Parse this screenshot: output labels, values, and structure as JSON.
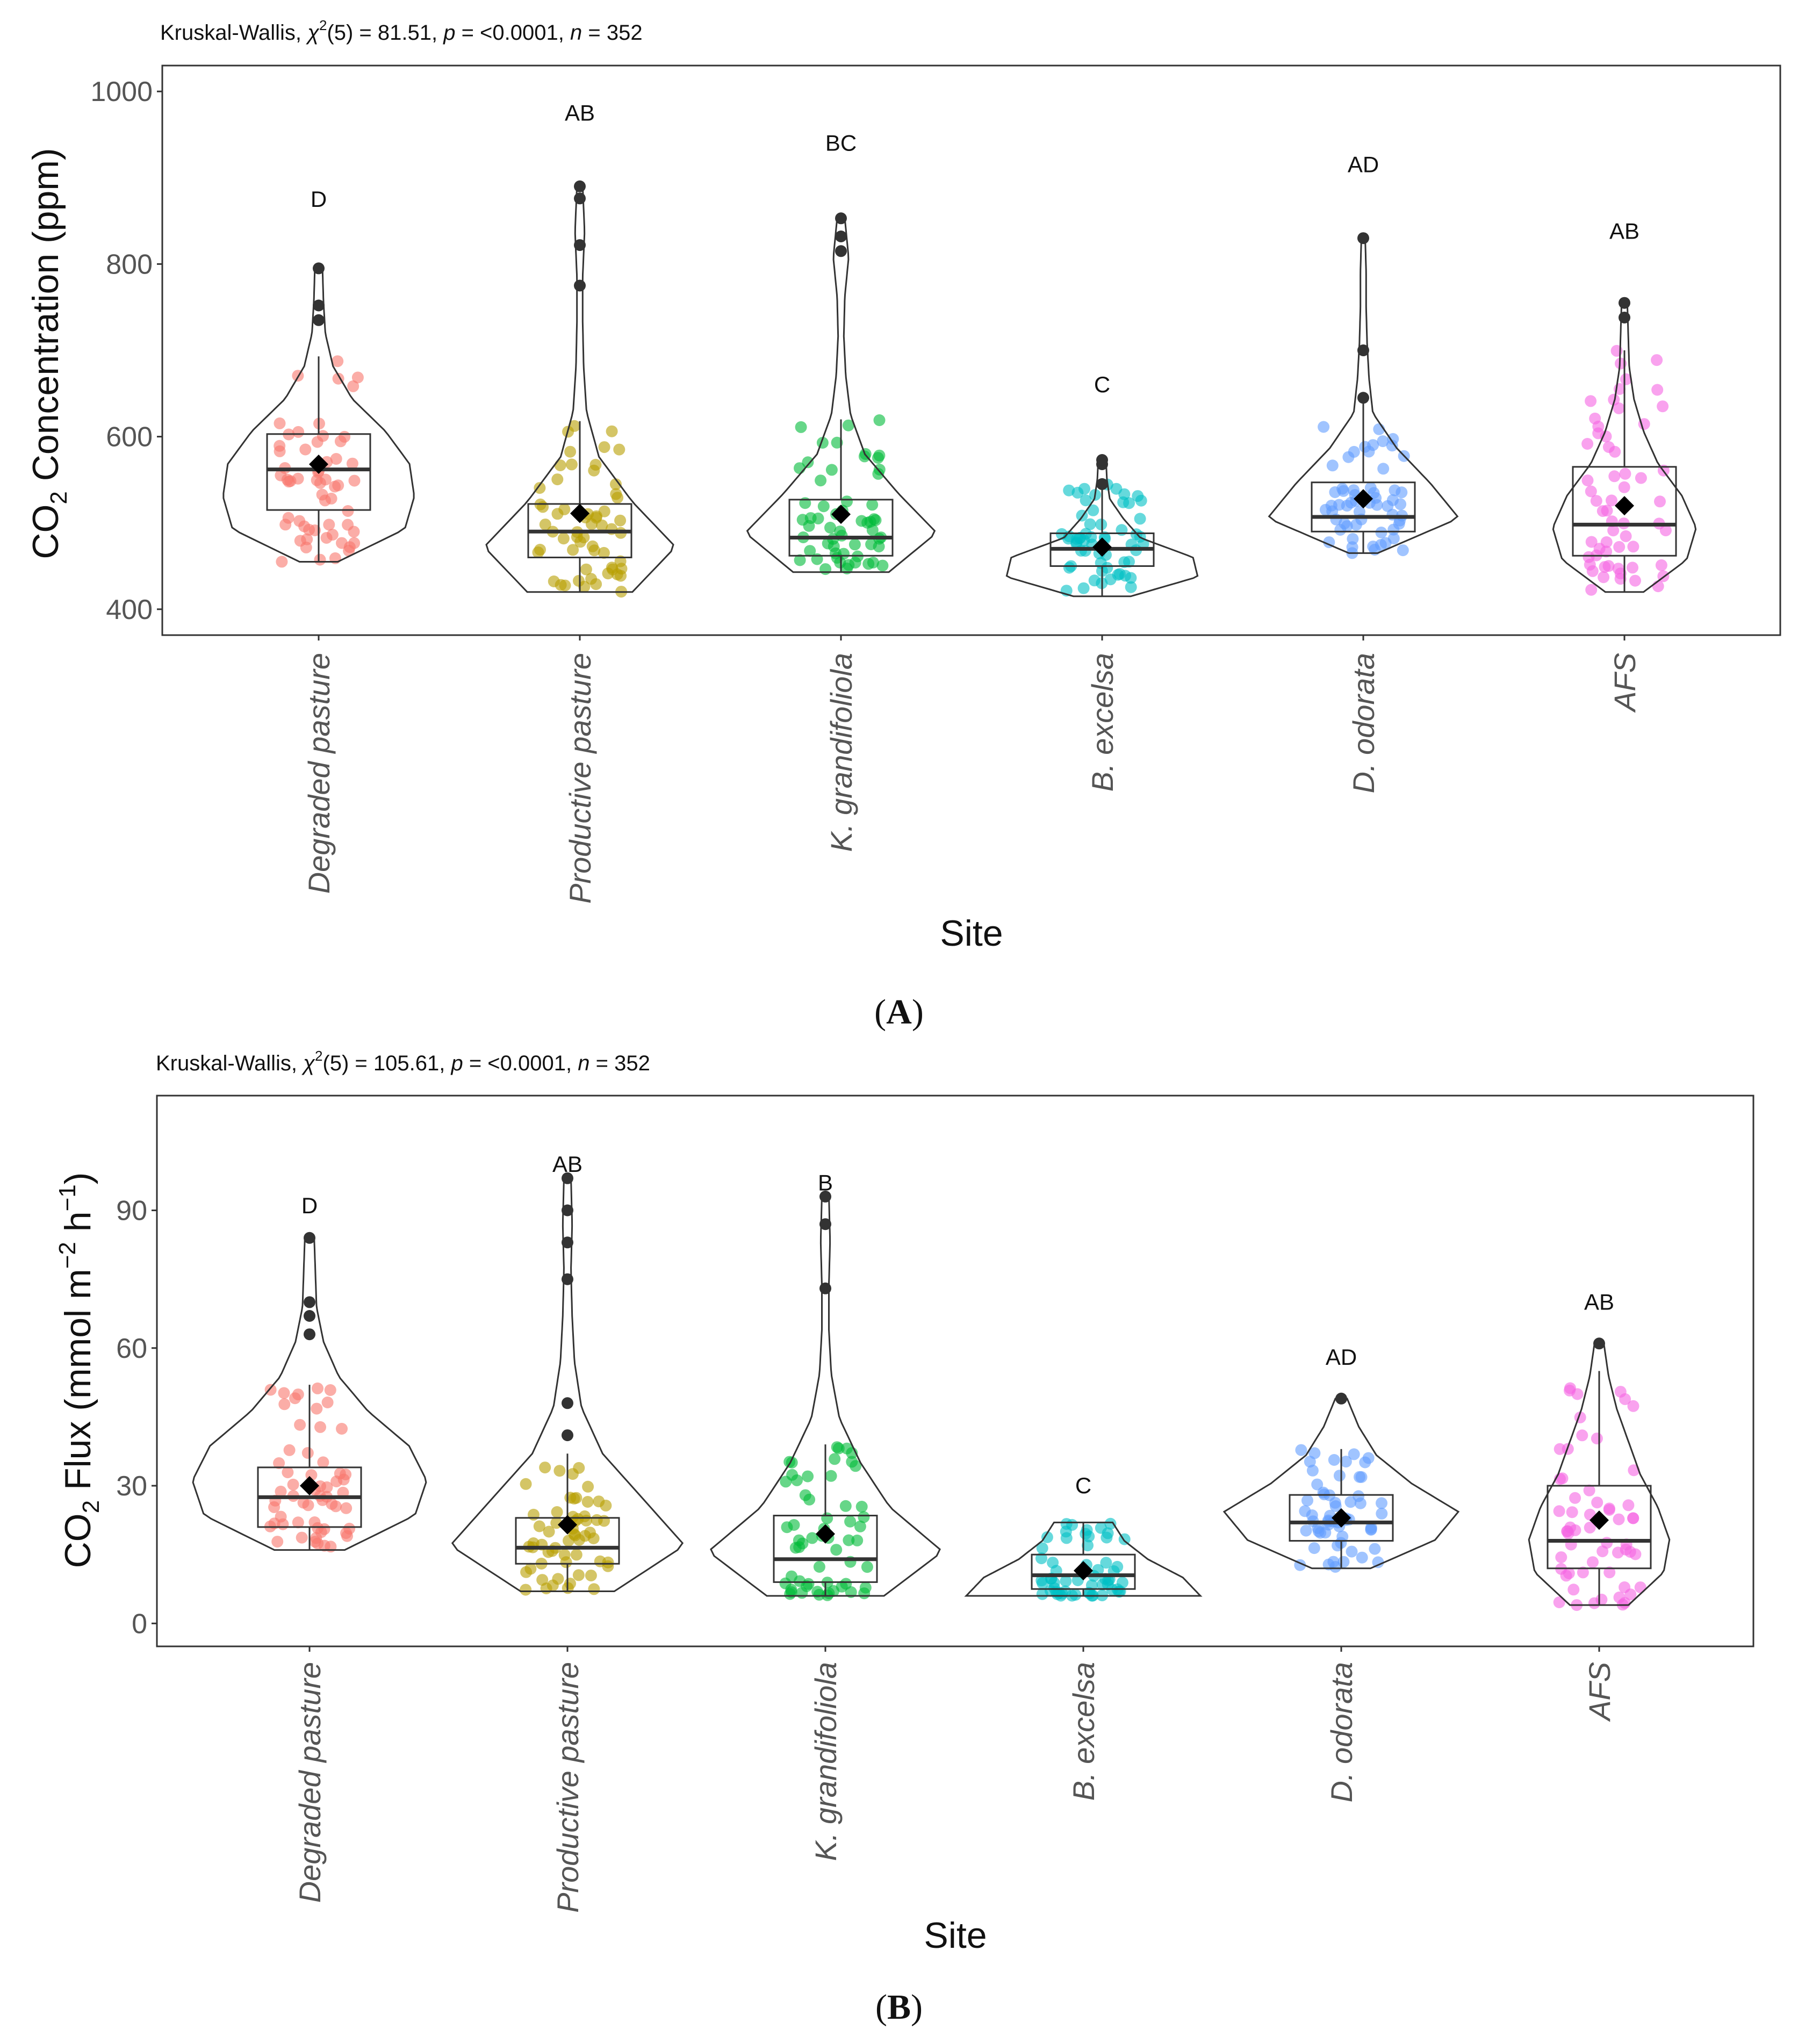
{
  "chart_data": [
    {
      "panel_label": "A",
      "type": "box-violin-strip",
      "title": "",
      "stat": {
        "prefix": "Kruskal-Wallis, ",
        "chi": "χ",
        "sup": "2",
        "df_part": "(5) = 81.51, ",
        "p_sym": "p",
        "p_part": " = <0.0001, ",
        "n_sym": "n",
        "n_part": " = 352"
      },
      "xlabel": "Site",
      "ylabel_main": "CO",
      "ylabel_sub": "2",
      "ylabel_rest": " Concentration (ppm)",
      "ylim": [
        370,
        1030
      ],
      "yticks": [
        400,
        600,
        800,
        1000
      ],
      "categories": [
        "Degraded pasture",
        "Productive pasture",
        "K. grandifoliola",
        "B. excelsa",
        "D. odorata",
        "AFS"
      ],
      "colors": [
        "#F8766D",
        "#B79F00",
        "#00BA38",
        "#00BFC4",
        "#619CFF",
        "#F564E3"
      ],
      "letters": [
        "D",
        "AB",
        "BC",
        "C",
        "AD",
        "AB"
      ],
      "letter_y": [
        875,
        975,
        940,
        660,
        915,
        838
      ],
      "boxes": [
        {
          "q1": 515,
          "median": 562,
          "q3": 603,
          "wlo": 455,
          "whi": 693,
          "mean": 568,
          "min": 455,
          "max": 795,
          "outliers": [
            735,
            752,
            795
          ]
        },
        {
          "q1": 460,
          "median": 490,
          "q3": 522,
          "wlo": 420,
          "whi": 618,
          "mean": 511,
          "min": 420,
          "max": 890,
          "outliers": [
            775,
            822,
            876,
            890
          ]
        },
        {
          "q1": 462,
          "median": 483,
          "q3": 527,
          "wlo": 443,
          "whi": 620,
          "mean": 510,
          "min": 443,
          "max": 853,
          "outliers": [
            815,
            832,
            853
          ]
        },
        {
          "q1": 450,
          "median": 470,
          "q3": 488,
          "wlo": 415,
          "whi": 545,
          "mean": 472,
          "min": 415,
          "max": 573,
          "outliers": [
            545,
            568,
            573
          ]
        },
        {
          "q1": 490,
          "median": 507,
          "q3": 547,
          "wlo": 465,
          "whi": 640,
          "mean": 528,
          "min": 465,
          "max": 830,
          "outliers": [
            645,
            700,
            830
          ]
        },
        {
          "q1": 462,
          "median": 498,
          "q3": 565,
          "wlo": 420,
          "whi": 700,
          "mean": 520,
          "min": 420,
          "max": 755,
          "outliers": [
            738,
            755
          ]
        }
      ],
      "violin_shapes": [
        [
          0.2,
          0.9,
          1.0,
          0.95,
          0.7,
          0.35,
          0.15,
          0.07,
          0.05,
          0.04
        ],
        [
          0.55,
          1.0,
          0.55,
          0.2,
          0.07,
          0.04,
          0.03,
          0.03,
          0.05,
          0.03
        ],
        [
          0.5,
          1.0,
          0.6,
          0.25,
          0.1,
          0.05,
          0.03,
          0.04,
          0.08,
          0.04
        ],
        [
          0.3,
          1.0,
          0.95,
          0.4,
          0.22,
          0.08,
          0.05,
          0.04
        ],
        [
          0.15,
          1.0,
          0.7,
          0.35,
          0.1,
          0.06,
          0.04,
          0.03,
          0.03,
          0.02
        ],
        [
          0.2,
          0.65,
          0.75,
          0.6,
          0.35,
          0.2,
          0.1,
          0.05,
          0.04,
          0.03
        ]
      ]
    },
    {
      "panel_label": "B",
      "type": "box-violin-strip",
      "title": "",
      "stat": {
        "prefix": "Kruskal-Wallis, ",
        "chi": "χ",
        "sup": "2",
        "df_part": "(5) = 105.61, ",
        "p_sym": "p",
        "p_part": " = <0.0001, ",
        "n_sym": "n",
        "n_part": " = 352"
      },
      "xlabel": "Site",
      "ylabel_main": "CO",
      "ylabel_sub": "2",
      "ylabel_rest": " Flux (mmol m",
      "ylabel_sup1": "−2",
      "ylabel_mid": " h",
      "ylabel_sup2": "−1",
      "ylabel_end": ")",
      "ylim": [
        -5,
        115
      ],
      "yticks": [
        0,
        30,
        60,
        90
      ],
      "categories": [
        "Degraded pasture",
        "Productive pasture",
        "K. grandifoliola",
        "B. excelsa",
        "D. odorata",
        "AFS"
      ],
      "colors": [
        "#F8766D",
        "#B79F00",
        "#00BA38",
        "#00BFC4",
        "#619CFF",
        "#F564E3"
      ],
      "letters": [
        "D",
        "AB",
        "B",
        "C",
        "AD",
        "AB"
      ],
      "letter_y": [
        91,
        100,
        96,
        30,
        58,
        70
      ],
      "boxes": [
        {
          "q1": 21,
          "median": 27.5,
          "q3": 34,
          "wlo": 16,
          "whi": 52,
          "mean": 30,
          "min": 16,
          "max": 84,
          "outliers": [
            63,
            67,
            70,
            84
          ]
        },
        {
          "q1": 13,
          "median": 16.5,
          "q3": 23,
          "wlo": 7,
          "whi": 37,
          "mean": 21.5,
          "min": 7,
          "max": 97,
          "outliers": [
            41,
            48,
            75,
            83,
            90,
            97
          ]
        },
        {
          "q1": 9,
          "median": 14,
          "q3": 23.5,
          "wlo": 6,
          "whi": 39,
          "mean": 19.5,
          "min": 6,
          "max": 93,
          "outliers": [
            73,
            87,
            93
          ]
        },
        {
          "q1": 7.5,
          "median": 10.5,
          "q3": 15,
          "wlo": 6,
          "whi": 22,
          "mean": 11.5,
          "min": 6,
          "max": 22,
          "outliers": []
        },
        {
          "q1": 18,
          "median": 22,
          "q3": 28,
          "wlo": 12,
          "whi": 38,
          "mean": 23,
          "min": 12,
          "max": 49,
          "outliers": [
            49
          ]
        },
        {
          "q1": 12,
          "median": 18,
          "q3": 30,
          "wlo": 4,
          "whi": 55,
          "mean": 22.5,
          "min": 4,
          "max": 61,
          "outliers": [
            61
          ]
        }
      ],
      "violin_shapes": [
        [
          0.3,
          0.9,
          1.0,
          0.85,
          0.5,
          0.25,
          0.12,
          0.06,
          0.05,
          0.04
        ],
        [
          0.4,
          1.0,
          0.65,
          0.3,
          0.12,
          0.06,
          0.04,
          0.03,
          0.04,
          0.03
        ],
        [
          0.5,
          1.0,
          0.55,
          0.3,
          0.12,
          0.05,
          0.03,
          0.03,
          0.04,
          0.03
        ],
        [
          1.0,
          0.85,
          0.55,
          0.35,
          0.25
        ],
        [
          0.25,
          0.8,
          1.0,
          0.6,
          0.3,
          0.15,
          0.05
        ],
        [
          0.25,
          0.55,
          0.6,
          0.5,
          0.35,
          0.25,
          0.15,
          0.08,
          0.04
        ]
      ]
    }
  ]
}
